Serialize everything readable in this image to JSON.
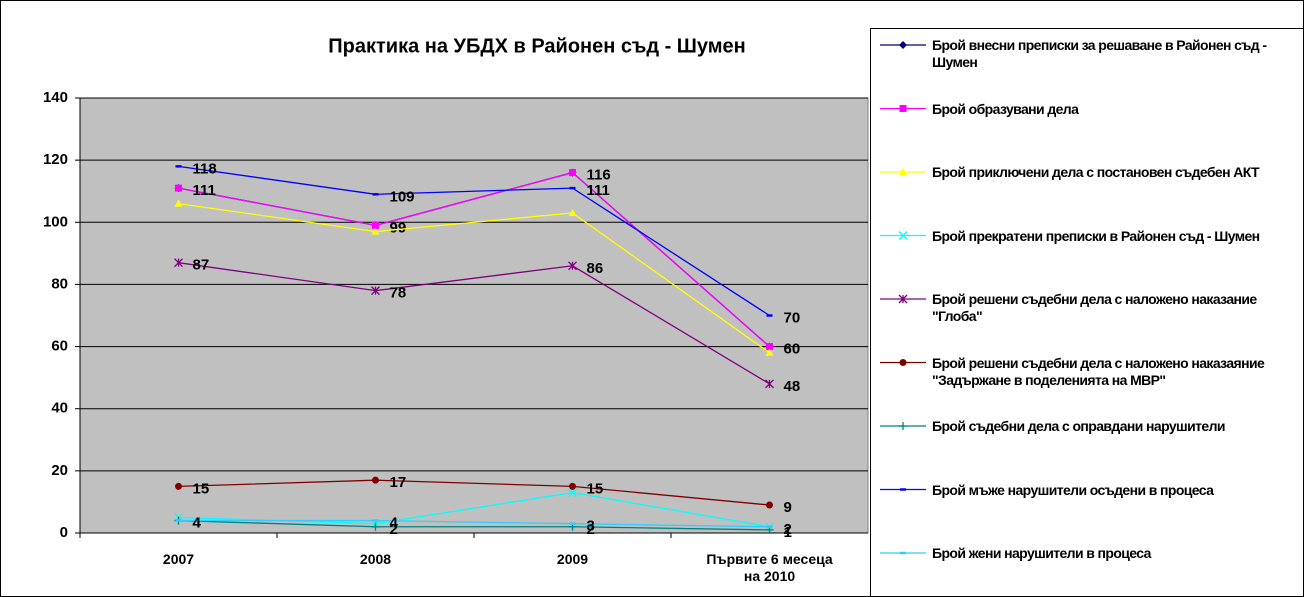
{
  "chart_data": {
    "type": "line",
    "title": "Практика на УБДХ в Районен съд - Шумен",
    "categories": [
      "2007",
      "2008",
      "2009",
      "Първите 6 месеца на 2010"
    ],
    "ylim": [
      0,
      140
    ],
    "yticks": [
      0,
      20,
      40,
      60,
      80,
      100,
      120,
      140
    ],
    "grid": true,
    "series": [
      {
        "name": "Брой внесни преписки за решаване в Районен съд - Шумен",
        "color": "#000080",
        "marker": "diamond",
        "values": [
          111,
          99,
          116,
          60
        ]
      },
      {
        "name": "Брой образувани дела",
        "color": "#ff00ff",
        "marker": "square",
        "values": [
          111,
          99,
          116,
          60
        ],
        "data_labels": true
      },
      {
        "name": "Брой приключени дела с постановен съдебен АКТ",
        "color": "#ffff00",
        "marker": "triangle",
        "values": [
          106,
          97,
          103,
          58
        ]
      },
      {
        "name": "Брой прекратени преписки в Районен съд - Шумен",
        "color": "#00ffff",
        "marker": "x",
        "values": [
          5,
          3,
          13,
          2
        ]
      },
      {
        "name": "Брой решени съдебни дела с наложено наказание \"Глоба\"",
        "color": "#800080",
        "marker": "star",
        "values": [
          87,
          78,
          86,
          48
        ],
        "data_labels": true
      },
      {
        "name": "Брой решени съдебни дела с наложено наказаяние \"Задържане в поделенията на МВР\"",
        "color": "#800000",
        "marker": "circle",
        "values": [
          15,
          17,
          15,
          9
        ],
        "data_labels": true
      },
      {
        "name": "Брой съдебни дела с оправдани нарушители",
        "color": "#008080",
        "marker": "plus",
        "values": [
          4,
          2,
          2,
          1
        ],
        "data_labels": true
      },
      {
        "name": "Брой мъже нарушители осъдени в процеса",
        "color": "#0000ff",
        "marker": "dash",
        "values": [
          118,
          109,
          111,
          70
        ],
        "data_labels": true
      },
      {
        "name": "Брой жени нарушители в процеса",
        "color": "#33ccff",
        "marker": "dash",
        "values": [
          4,
          4,
          3,
          2
        ],
        "data_labels": true
      }
    ]
  }
}
